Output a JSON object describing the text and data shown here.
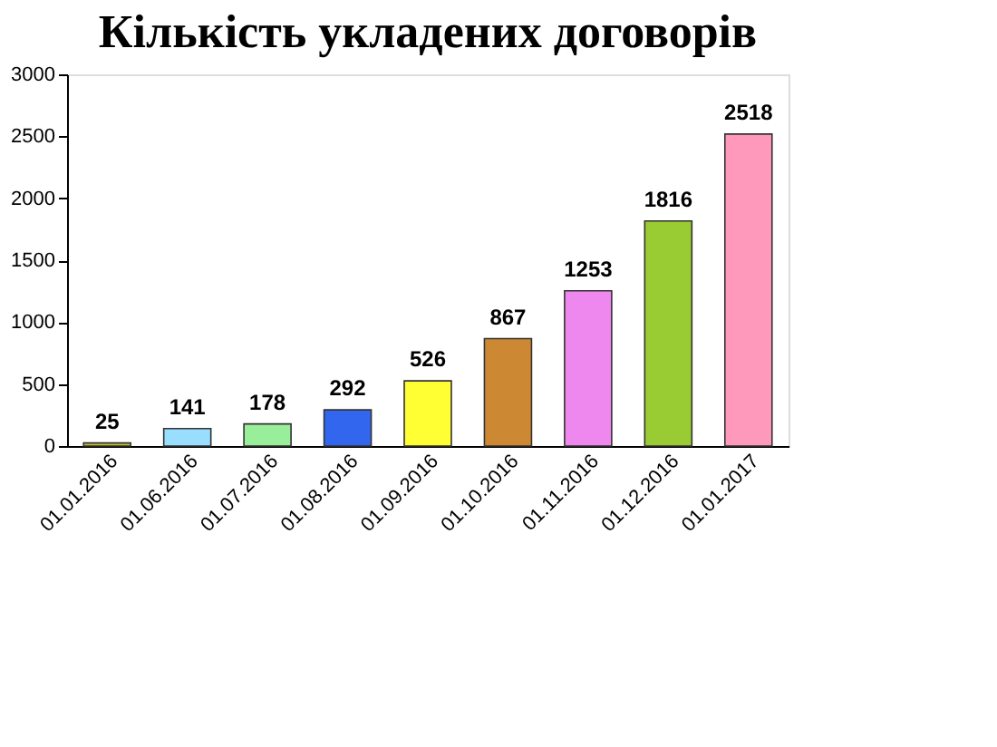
{
  "chart_data": {
    "type": "bar",
    "title": "Кількість укладених договорів",
    "categories": [
      "01.01.2016",
      "01.06.2016",
      "01.07.2016",
      "01.08.2016",
      "01.09.2016",
      "01.10.2016",
      "01.11.2016",
      "01.12.2016",
      "01.01.2017"
    ],
    "values": [
      25,
      141,
      178,
      292,
      526,
      867,
      1253,
      1816,
      2518
    ],
    "colors": [
      "#c8c030",
      "#99ddff",
      "#99ee99",
      "#3366ee",
      "#ffff33",
      "#cc8833",
      "#ee88ee",
      "#99cc33",
      "#ff99bb"
    ],
    "ylim": [
      0,
      3000
    ],
    "yticks": [
      0,
      500,
      1000,
      1500,
      2000,
      2500,
      3000
    ],
    "grid": false,
    "data_labels": true
  }
}
